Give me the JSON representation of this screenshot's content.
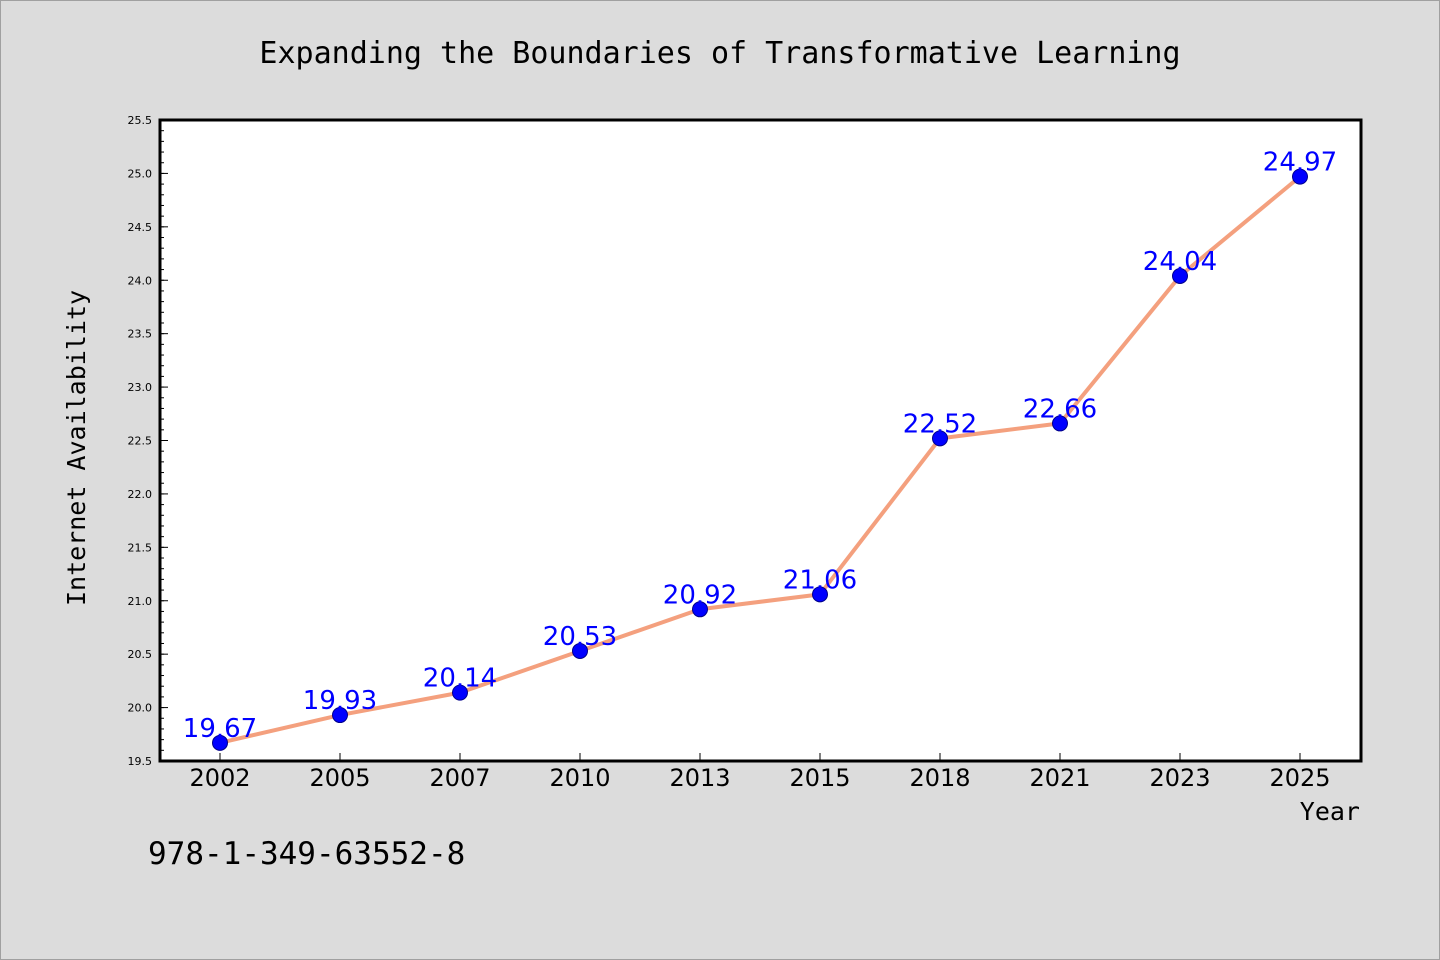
{
  "chart_data": {
    "type": "line",
    "title": "Expanding the Boundaries of Transformative Learning",
    "xlabel": "Year",
    "ylabel": "Internet Availability",
    "categories": [
      "2002",
      "2005",
      "2007",
      "2010",
      "2013",
      "2015",
      "2018",
      "2021",
      "2023",
      "2025"
    ],
    "series": [
      {
        "values": [
          19.67,
          19.93,
          20.14,
          20.53,
          20.92,
          21.06,
          22.52,
          22.66,
          24.04,
          24.97
        ],
        "data_labels": [
          "19.67",
          "19.93",
          "20.14",
          "20.53",
          "20.92",
          "21.06",
          "22.52",
          "22.66",
          "24.04",
          "24.97"
        ]
      }
    ],
    "ylim": [
      19.5,
      25.5
    ],
    "yticks": [
      "19.5",
      "20.0",
      "20.5",
      "21.0",
      "21.5",
      "22.0",
      "22.5",
      "23.0",
      "23.5",
      "24.0",
      "24.5",
      "25.0",
      "25.5"
    ],
    "grid": false,
    "legend": "none",
    "colors": {
      "line": "#f4a07e",
      "marker": "#0000ff",
      "data_label": "#0000ff",
      "background": "#dcdcdc",
      "plot_background": "#ffffff"
    }
  },
  "footer": {
    "isbn": "978-1-349-63552-8"
  }
}
